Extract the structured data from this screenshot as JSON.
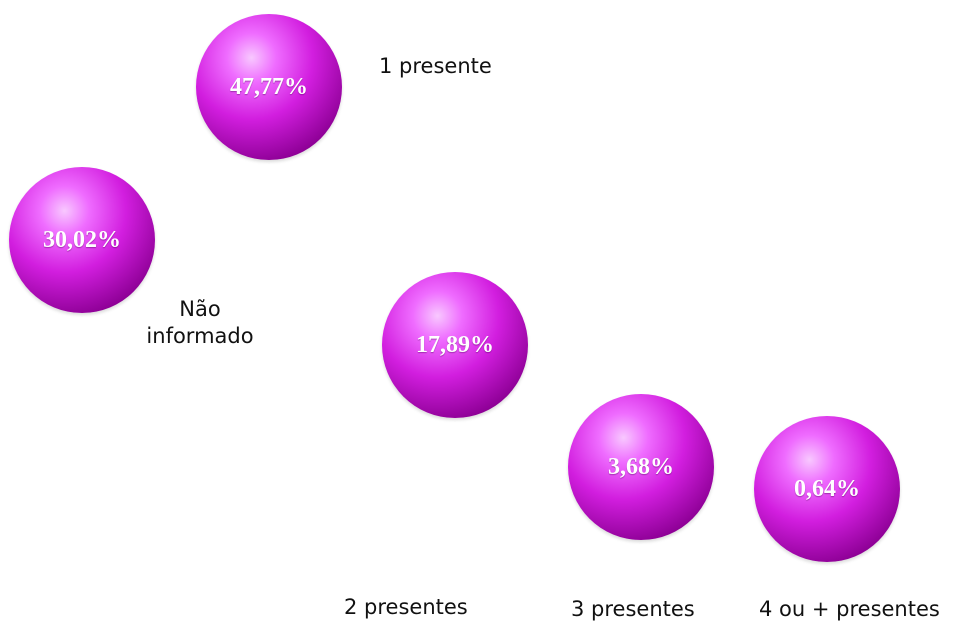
{
  "chart_data": {
    "type": "bubble",
    "categories": [
      "Não informado",
      "1 presente",
      "2 presentes",
      "3 presentes",
      "4 ou + presentes"
    ],
    "values": [
      30.02,
      47.77,
      17.89,
      3.68,
      0.64
    ],
    "value_labels": [
      "30,02%",
      "47,77%",
      "17,89%",
      "3,68%",
      "0,64%"
    ],
    "category_labels": [
      "Não\ninformado",
      "1 presente",
      "2 presentes",
      "3 presentes",
      "4 ou + presentes"
    ],
    "colors": {
      "bubble": "#d21edf",
      "value_text": "#ffffff",
      "category_text": "#111111"
    }
  }
}
